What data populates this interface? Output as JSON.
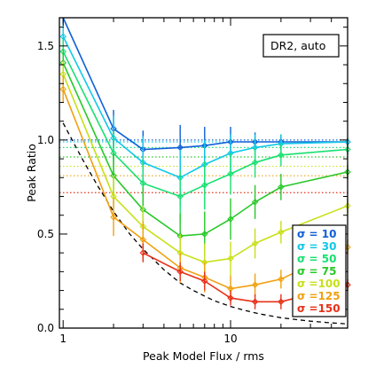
{
  "chart_data": {
    "type": "line",
    "xlabel": "Peak Model Flux / rms",
    "ylabel": "Peak Ratio",
    "annotation": "DR2, auto",
    "x_scale": "log",
    "xlim": [
      0.95,
      50
    ],
    "ylim": [
      0.0,
      1.65
    ],
    "x_ticks": [
      {
        "value": 1,
        "label": "1"
      },
      {
        "value": 10,
        "label": "10"
      }
    ],
    "y_ticks": [
      {
        "value": 0.0,
        "label": "0.0"
      },
      {
        "value": 0.5,
        "label": "0.5"
      },
      {
        "value": 1.0,
        "label": "1.0"
      },
      {
        "value": 1.5,
        "label": "1.5"
      }
    ],
    "legend_position": "bottom-right",
    "series": [
      {
        "name": "σ = 10",
        "color": "#1060d8",
        "x": [
          1,
          2,
          3,
          5,
          7,
          10,
          14,
          20,
          50
        ],
        "y": [
          1.68,
          1.06,
          0.95,
          0.96,
          0.97,
          0.99,
          0.99,
          0.99,
          0.99
        ],
        "err": [
          0.06,
          0.1,
          0.1,
          0.12,
          0.1,
          0.08,
          0.05,
          0.04,
          0.02
        ],
        "reference_y": 1.0
      },
      {
        "name": "σ = 30",
        "color": "#10c8e8",
        "x": [
          1,
          2,
          3,
          5,
          7,
          10,
          14,
          20,
          50
        ],
        "y": [
          1.55,
          1.01,
          0.88,
          0.8,
          0.87,
          0.93,
          0.96,
          0.98,
          0.99
        ],
        "err": [
          0.07,
          0.12,
          0.14,
          0.15,
          0.13,
          0.1,
          0.07,
          0.05,
          0.02
        ],
        "reference_y": 0.99
      },
      {
        "name": "σ = 50",
        "color": "#18e070",
        "x": [
          1,
          2,
          3,
          5,
          7,
          10,
          14,
          20,
          50
        ],
        "y": [
          1.47,
          0.93,
          0.77,
          0.7,
          0.76,
          0.82,
          0.88,
          0.92,
          0.95
        ],
        "err": [
          0.07,
          0.12,
          0.13,
          0.14,
          0.13,
          0.11,
          0.08,
          0.06,
          0.03
        ],
        "reference_y": 0.96
      },
      {
        "name": "σ = 75",
        "color": "#28c828",
        "x": [
          1,
          2,
          3,
          5,
          7,
          10,
          14,
          20,
          50
        ],
        "y": [
          1.41,
          0.81,
          0.63,
          0.49,
          0.5,
          0.58,
          0.67,
          0.75,
          0.83
        ],
        "err": [
          0.07,
          0.12,
          0.12,
          0.12,
          0.12,
          0.11,
          0.09,
          0.07,
          0.04
        ],
        "reference_y": 0.91
      },
      {
        "name": "σ =100",
        "color": "#c8e018",
        "x": [
          1,
          2,
          3,
          5,
          7,
          10,
          14,
          20,
          50
        ],
        "y": [
          1.35,
          0.7,
          0.54,
          0.4,
          0.35,
          0.37,
          0.45,
          0.51,
          0.65
        ],
        "err": [
          0.07,
          0.11,
          0.11,
          0.1,
          0.1,
          0.09,
          0.08,
          0.06,
          0.04
        ],
        "reference_y": 0.86
      },
      {
        "name": "σ =125",
        "color": "#f0a010",
        "x": [
          1,
          2,
          3,
          5,
          7,
          10,
          14,
          20,
          50
        ],
        "y": [
          1.27,
          0.59,
          0.47,
          0.32,
          0.27,
          0.21,
          0.23,
          0.26,
          0.43
        ],
        "err": [
          0.07,
          0.1,
          0.1,
          0.08,
          0.08,
          0.07,
          0.06,
          0.05,
          0.04
        ],
        "reference_y": 0.81
      },
      {
        "name": "σ =150",
        "color": "#e83018",
        "x": [
          3,
          5,
          7,
          10,
          14,
          20,
          50
        ],
        "y": [
          0.4,
          0.3,
          0.25,
          0.16,
          0.14,
          0.14,
          0.23
        ],
        "err": [
          0.05,
          0.05,
          0.05,
          0.04,
          0.04,
          0.04,
          0.03
        ],
        "reference_y": 0.72
      }
    ],
    "dashed_curve": {
      "color": "#000000",
      "x": [
        1,
        1.3,
        1.6,
        2,
        2.5,
        3,
        4,
        5,
        6,
        7,
        8,
        10,
        12,
        15,
        20,
        25,
        30,
        40,
        50
      ],
      "y": [
        1.09,
        0.9,
        0.76,
        0.62,
        0.5,
        0.42,
        0.31,
        0.24,
        0.2,
        0.17,
        0.145,
        0.115,
        0.095,
        0.075,
        0.055,
        0.045,
        0.037,
        0.028,
        0.022
      ]
    }
  }
}
